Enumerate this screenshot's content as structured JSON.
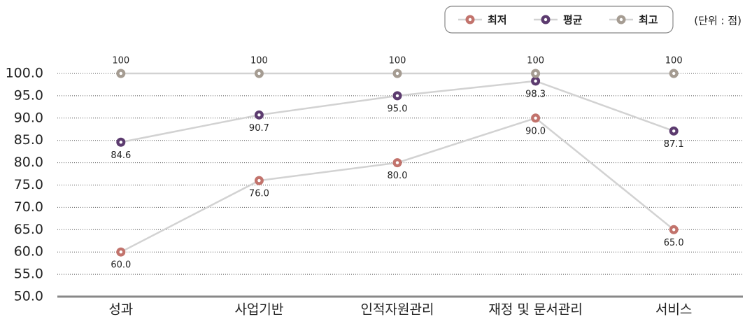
{
  "chart_data": {
    "type": "line",
    "unit_note": "(단위 : 점)",
    "categories": [
      "성과",
      "사업기반",
      "인적자원관리",
      "재정 및 문서관리",
      "서비스"
    ],
    "series": [
      {
        "name": "최저",
        "color": "#c2736c",
        "values": [
          60,
          76,
          80,
          90,
          65
        ],
        "value_labels": [
          "60.0",
          "76.0",
          "80.0",
          "90.0",
          "65.0"
        ],
        "label_position": "below"
      },
      {
        "name": "평균",
        "color": "#5c3b6f",
        "values": [
          84.6,
          90.7,
          95,
          98.3,
          87.1
        ],
        "value_labels": [
          "84.6",
          "90.7",
          "95.0",
          "98.3",
          "87.1"
        ],
        "label_position": "below"
      },
      {
        "name": "최고",
        "color": "#a59c92",
        "values": [
          100,
          100,
          100,
          100,
          100
        ],
        "label_position": "above"
      }
    ],
    "line_color": "#d2d2d2",
    "ylim": [
      50,
      100
    ],
    "yticks": [
      {
        "value": 50,
        "label": "50.0"
      },
      {
        "value": 55,
        "label": "55.0"
      },
      {
        "value": 60,
        "label": "60.0"
      },
      {
        "value": 65,
        "label": "65.0"
      },
      {
        "value": 70,
        "label": "70.0"
      },
      {
        "value": 75,
        "label": "75.0"
      },
      {
        "value": 80,
        "label": "80.0"
      },
      {
        "value": 85,
        "label": "85.0"
      },
      {
        "value": 90,
        "label": "90.0"
      },
      {
        "value": 95,
        "label": "95.0"
      },
      {
        "value": 100,
        "label": "100.0"
      }
    ],
    "grid": true,
    "legend": "top-right"
  }
}
